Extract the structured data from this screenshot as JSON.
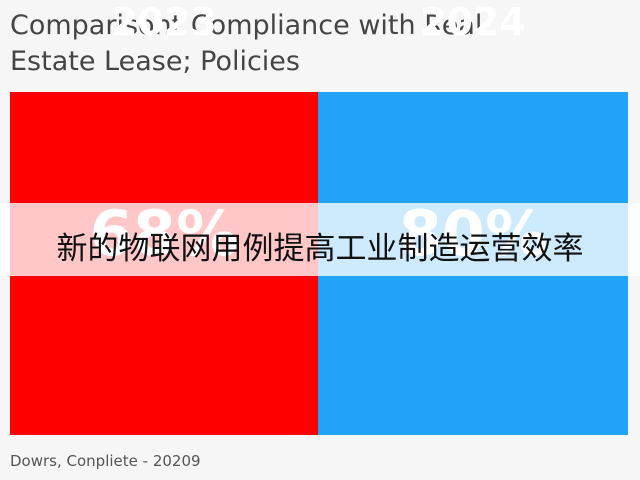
{
  "header": {
    "title_lines": [
      "Comparisont Compliance with Real",
      "Estate Lease; Policies"
    ]
  },
  "panels": [
    {
      "year": "2023",
      "value": "68%",
      "color": "#fe0000"
    },
    {
      "year": "2024",
      "value": "80%",
      "color": "#22a3f8"
    }
  ],
  "overlay": {
    "text": "新的物联网用例提高工业制造运营效率"
  },
  "footer": {
    "source": "Dowrs, Conpliete - 20209"
  }
}
